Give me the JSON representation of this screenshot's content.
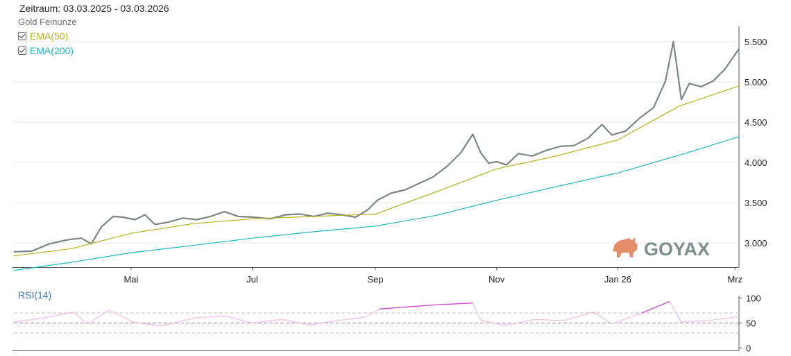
{
  "header": {
    "period_label": "Zeitraum: 03.03.2025 - 03.03.2026",
    "instrument": "Gold Feinunze"
  },
  "legend": [
    {
      "label": "EMA(50)",
      "color": "#b5b01c",
      "checked": true
    },
    {
      "label": "EMA(200)",
      "color": "#1fb5c4",
      "checked": true
    }
  ],
  "logo": {
    "text": "GOYAX",
    "text_color": "#7d8f8c",
    "icon": "bull-icon",
    "icon_color": "#e58c6b"
  },
  "colors": {
    "price": "#7b8681",
    "ema50": "#b5b01c",
    "ema200": "#1fb5c4",
    "rsi": "#c94fc9",
    "rsi_light": "#f2b8f0"
  },
  "chart_data": [
    {
      "type": "line",
      "title": "Gold Feinunze",
      "x_ticks": [
        {
          "label": "Mai",
          "date": "2025-05-01"
        },
        {
          "label": "Jul",
          "date": "2025-07-01"
        },
        {
          "label": "Sep",
          "date": "2025-09-01"
        },
        {
          "label": "Nov",
          "date": "2025-11-01"
        },
        {
          "label": "Jan 26",
          "date": "2026-01-01"
        },
        {
          "label": "Mrz",
          "date": "2026-03-01"
        }
      ],
      "y_ticks": [
        {
          "label": "3.000",
          "value": 3000
        },
        {
          "label": "3.500",
          "value": 3500
        },
        {
          "label": "4.000",
          "value": 4000
        },
        {
          "label": "4.500",
          "value": 4500
        },
        {
          "label": "5.000",
          "value": 5000
        },
        {
          "label": "5.500",
          "value": 5500
        }
      ],
      "xlim": [
        "2025-03-03",
        "2026-03-03"
      ],
      "ylim": [
        2700,
        5620
      ],
      "grid": true,
      "series": [
        {
          "name": "Gold Feinunze",
          "points": [
            [
              "2025-03-03",
              2890
            ],
            [
              "2025-03-12",
              2900
            ],
            [
              "2025-03-21",
              2990
            ],
            [
              "2025-03-30",
              3040
            ],
            [
              "2025-04-06",
              3060
            ],
            [
              "2025-04-11",
              2990
            ],
            [
              "2025-04-16",
              3200
            ],
            [
              "2025-04-22",
              3330
            ],
            [
              "2025-04-27",
              3320
            ],
            [
              "2025-05-03",
              3290
            ],
            [
              "2025-05-08",
              3350
            ],
            [
              "2025-05-13",
              3230
            ],
            [
              "2025-05-20",
              3260
            ],
            [
              "2025-05-27",
              3310
            ],
            [
              "2025-06-03",
              3290
            ],
            [
              "2025-06-10",
              3330
            ],
            [
              "2025-06-17",
              3390
            ],
            [
              "2025-06-24",
              3330
            ],
            [
              "2025-07-02",
              3320
            ],
            [
              "2025-07-10",
              3300
            ],
            [
              "2025-07-18",
              3350
            ],
            [
              "2025-07-25",
              3360
            ],
            [
              "2025-08-01",
              3330
            ],
            [
              "2025-08-08",
              3370
            ],
            [
              "2025-08-15",
              3350
            ],
            [
              "2025-08-22",
              3320
            ],
            [
              "2025-08-28",
              3410
            ],
            [
              "2025-09-02",
              3530
            ],
            [
              "2025-09-09",
              3620
            ],
            [
              "2025-09-16",
              3660
            ],
            [
              "2025-09-23",
              3740
            ],
            [
              "2025-09-30",
              3820
            ],
            [
              "2025-10-07",
              3950
            ],
            [
              "2025-10-14",
              4120
            ],
            [
              "2025-10-20",
              4350
            ],
            [
              "2025-10-24",
              4120
            ],
            [
              "2025-10-28",
              3990
            ],
            [
              "2025-11-01",
              4010
            ],
            [
              "2025-11-06",
              3970
            ],
            [
              "2025-11-12",
              4110
            ],
            [
              "2025-11-19",
              4080
            ],
            [
              "2025-11-26",
              4150
            ],
            [
              "2025-12-03",
              4200
            ],
            [
              "2025-12-10",
              4210
            ],
            [
              "2025-12-17",
              4300
            ],
            [
              "2025-12-24",
              4470
            ],
            [
              "2025-12-29",
              4340
            ],
            [
              "2026-01-05",
              4390
            ],
            [
              "2026-01-12",
              4550
            ],
            [
              "2026-01-19",
              4680
            ],
            [
              "2026-01-25",
              5010
            ],
            [
              "2026-01-29",
              5500
            ],
            [
              "2026-02-02",
              4780
            ],
            [
              "2026-02-06",
              4980
            ],
            [
              "2026-02-12",
              4940
            ],
            [
              "2026-02-18",
              5010
            ],
            [
              "2026-02-24",
              5160
            ],
            [
              "2026-03-03",
              5410
            ]
          ]
        },
        {
          "name": "EMA(50)",
          "points": [
            [
              "2025-03-03",
              2840
            ],
            [
              "2025-04-01",
              2930
            ],
            [
              "2025-05-01",
              3120
            ],
            [
              "2025-06-01",
              3240
            ],
            [
              "2025-07-01",
              3300
            ],
            [
              "2025-08-01",
              3330
            ],
            [
              "2025-09-01",
              3360
            ],
            [
              "2025-10-01",
              3630
            ],
            [
              "2025-11-01",
              3920
            ],
            [
              "2025-12-01",
              4080
            ],
            [
              "2026-01-01",
              4280
            ],
            [
              "2026-02-01",
              4700
            ],
            [
              "2026-03-03",
              4950
            ]
          ]
        },
        {
          "name": "EMA(200)",
          "points": [
            [
              "2025-03-03",
              2660
            ],
            [
              "2025-04-01",
              2760
            ],
            [
              "2025-05-01",
              2880
            ],
            [
              "2025-06-01",
              2970
            ],
            [
              "2025-07-01",
              3060
            ],
            [
              "2025-08-01",
              3140
            ],
            [
              "2025-09-01",
              3210
            ],
            [
              "2025-10-01",
              3340
            ],
            [
              "2025-11-01",
              3530
            ],
            [
              "2025-12-01",
              3700
            ],
            [
              "2026-01-01",
              3870
            ],
            [
              "2026-02-01",
              4090
            ],
            [
              "2026-03-03",
              4320
            ]
          ]
        }
      ]
    },
    {
      "type": "line",
      "title": "RSI(14)",
      "y_ticks": [
        {
          "label": "100",
          "value": 100
        },
        {
          "label": "50",
          "value": 50
        },
        {
          "label": "0",
          "value": 0
        }
      ],
      "ylim": [
        -5,
        102
      ],
      "reference_lines": [
        30,
        50,
        70
      ],
      "xlim": [
        "2025-03-03",
        "2026-03-03"
      ],
      "series": [
        {
          "name": "RSI(14)",
          "points": [
            [
              "2025-03-03",
              52
            ],
            [
              "2025-03-18",
              60
            ],
            [
              "2025-04-02",
              72
            ],
            [
              "2025-04-09",
              48
            ],
            [
              "2025-04-20",
              76
            ],
            [
              "2025-05-02",
              52
            ],
            [
              "2025-05-16",
              44
            ],
            [
              "2025-06-02",
              60
            ],
            [
              "2025-06-17",
              64
            ],
            [
              "2025-07-01",
              50
            ],
            [
              "2025-07-16",
              57
            ],
            [
              "2025-07-30",
              46
            ],
            [
              "2025-08-13",
              55
            ],
            [
              "2025-08-27",
              62
            ],
            [
              "2025-09-03",
              78
            ],
            [
              "2025-09-16",
              82
            ],
            [
              "2025-09-30",
              86
            ],
            [
              "2025-10-10",
              88
            ],
            [
              "2025-10-20",
              90
            ],
            [
              "2025-10-24",
              56
            ],
            [
              "2025-11-05",
              45
            ],
            [
              "2025-11-20",
              57
            ],
            [
              "2025-12-05",
              55
            ],
            [
              "2025-12-20",
              72
            ],
            [
              "2025-12-29",
              48
            ],
            [
              "2026-01-13",
              70
            ],
            [
              "2026-01-27",
              93
            ],
            [
              "2026-02-02",
              52
            ],
            [
              "2026-02-16",
              55
            ],
            [
              "2026-03-03",
              63
            ]
          ]
        }
      ]
    }
  ]
}
